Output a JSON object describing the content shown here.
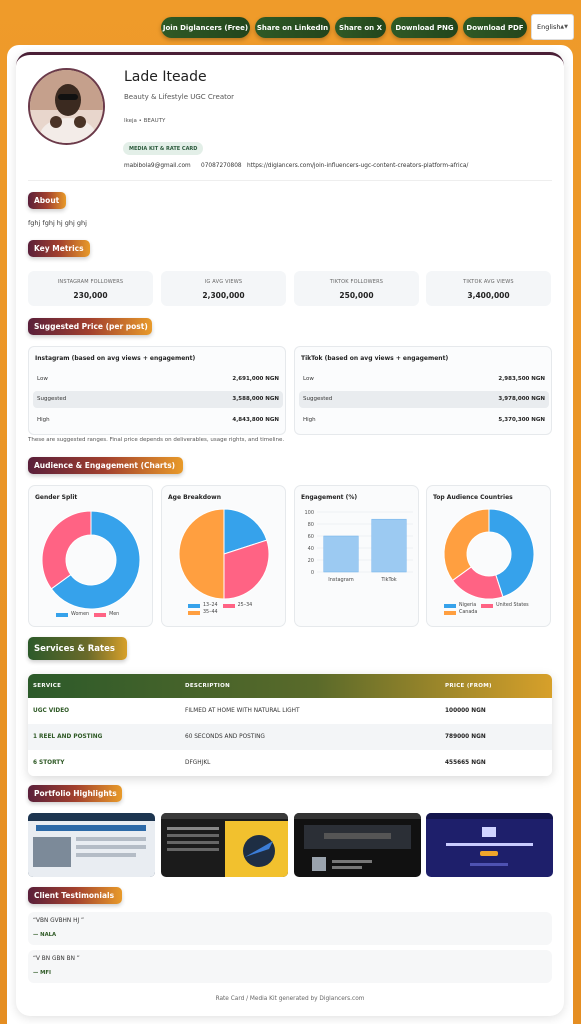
{
  "toolbar": {
    "join": "Join Diglancers (Free)",
    "linkedin": "Share on LinkedIn",
    "x": "Share on X",
    "png": "Download PNG",
    "pdf": "Download PDF",
    "language": "English"
  },
  "profile": {
    "name": "Lade Iteade",
    "role": "Beauty & Lifestyle UGC Creator",
    "location": "Ikeja • BEAUTY",
    "chip": "MEDIA KIT & RATE CARD",
    "email": "mabibola9@gmail.com",
    "phone": "07087270808",
    "url": "https://diglancers.com/join-influencers-ugc-content-creators-platform-africa/"
  },
  "about": {
    "title": "About",
    "text": "fghj fghj hj ghj ghj"
  },
  "metrics": {
    "title": "Key Metrics",
    "items": [
      {
        "label": "INSTAGRAM FOLLOWERS",
        "value": "230,000"
      },
      {
        "label": "IG AVG VIEWS",
        "value": "2,300,000"
      },
      {
        "label": "TIKTOK FOLLOWERS",
        "value": "250,000"
      },
      {
        "label": "TIKTOK AVG VIEWS",
        "value": "3,400,000"
      }
    ]
  },
  "pricing": {
    "title": "Suggested Price (per post)",
    "tables": [
      {
        "title": "Instagram (based on avg views + engagement)",
        "rows": [
          {
            "label": "Low",
            "value": "2,691,000 NGN"
          },
          {
            "label": "Suggested",
            "value": "3,588,000 NGN"
          },
          {
            "label": "High",
            "value": "4,843,800 NGN"
          }
        ]
      },
      {
        "title": "TikTok (based on avg views + engagement)",
        "rows": [
          {
            "label": "Low",
            "value": "2,983,500 NGN"
          },
          {
            "label": "Suggested",
            "value": "3,978,000 NGN"
          },
          {
            "label": "High",
            "value": "5,370,300 NGN"
          }
        ]
      }
    ],
    "note": "These are suggested ranges. Final price depends on deliverables, usage rights, and timeline."
  },
  "charts": {
    "title": "Audience & Engagement (Charts)",
    "gender_title": "Gender Split",
    "age_title": "Age Breakdown",
    "engagement_title": "Engagement (%)",
    "countries_title": "Top Audience Countries"
  },
  "chart_data": [
    {
      "type": "pie",
      "title": "Gender Split",
      "categories": [
        "Women",
        "Men"
      ],
      "values": [
        65,
        35
      ],
      "colors": [
        "#36a2eb",
        "#ff6384"
      ]
    },
    {
      "type": "pie",
      "title": "Age Breakdown",
      "categories": [
        "13–24",
        "25–34",
        "35–44"
      ],
      "values": [
        20,
        30,
        50
      ],
      "colors": [
        "#36a2eb",
        "#ff6384",
        "#ff9f40"
      ]
    },
    {
      "type": "bar",
      "title": "Engagement (%)",
      "categories": [
        "Instagram",
        "TikTok"
      ],
      "values": [
        60,
        88
      ],
      "ylim": [
        0,
        100
      ],
      "yticks": [
        "100",
        "80",
        "60",
        "40",
        "20",
        "0"
      ],
      "color": "#9ccaf2"
    },
    {
      "type": "pie",
      "title": "Top Audience Countries",
      "categories": [
        "Nigeria",
        "United States",
        "Canada"
      ],
      "values": [
        45,
        20,
        35
      ],
      "colors": [
        "#36a2eb",
        "#ff6384",
        "#ff9f40"
      ]
    }
  ],
  "services": {
    "title": "Services & Rates",
    "headers": [
      "SERVICE",
      "DESCRIPTION",
      "PRICE (FROM)"
    ],
    "rows": [
      {
        "service": "UGC VIDEO",
        "description": "FILMED AT HOME WITH NATURAL LIGHT",
        "price": "100000 NGN"
      },
      {
        "service": "1 REEL AND POSTING",
        "description": "60 SECONDS AND POSTING",
        "price": "789000 NGN"
      },
      {
        "service": "6 STORTY",
        "description": "DFGHJKL",
        "price": "455665 NGN"
      }
    ]
  },
  "portfolio": {
    "title": "Portfolio Highlights"
  },
  "testimonials": {
    "title": "Client Testimonials",
    "items": [
      {
        "quote": "“VBN GVBHN HJ ”",
        "author": "— NALA"
      },
      {
        "quote": "“V BN GBN BN ”",
        "author": "— MFI"
      }
    ]
  },
  "footer": "Rate Card / Media Kit generated by Diglancers.com"
}
